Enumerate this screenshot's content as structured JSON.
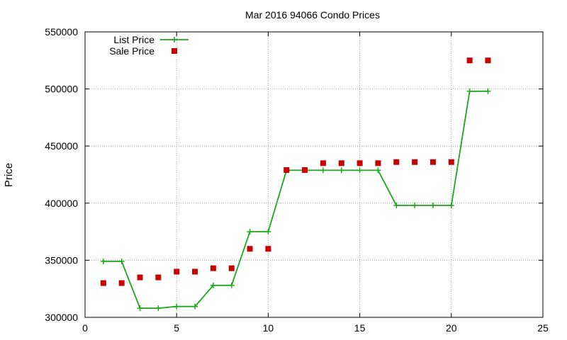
{
  "chart_data": {
    "type": "line",
    "title": "Mar 2016 94066 Condo Prices",
    "xlabel": "",
    "ylabel": "Price",
    "xlim": [
      0,
      25
    ],
    "ylim": [
      300000,
      550000
    ],
    "xticks": [
      0,
      5,
      10,
      15,
      20,
      25
    ],
    "yticks": [
      300000,
      350000,
      400000,
      450000,
      500000,
      550000
    ],
    "grid": true,
    "legend_position": "top-left",
    "series": [
      {
        "name": "List Price",
        "style": "line-points",
        "color": "#1aa81a",
        "x": [
          1,
          2,
          3,
          4,
          5,
          6,
          7,
          8,
          9,
          10,
          11,
          12,
          13,
          14,
          15,
          16,
          17,
          18,
          19,
          20,
          21,
          22
        ],
        "values": [
          349000,
          349000,
          308000,
          308000,
          309500,
          309500,
          328000,
          328000,
          375000,
          375000,
          428800,
          428800,
          428800,
          428800,
          428800,
          428800,
          398000,
          398000,
          398000,
          398000,
          498000,
          498000
        ]
      },
      {
        "name": "Sale Price",
        "style": "points",
        "color": "#c80000",
        "x": [
          1,
          2,
          3,
          4,
          5,
          6,
          7,
          8,
          9,
          10,
          11,
          12,
          13,
          14,
          15,
          16,
          17,
          18,
          19,
          20,
          21,
          22
        ],
        "values": [
          330000,
          330000,
          335000,
          335000,
          340000,
          340000,
          343000,
          343000,
          360000,
          360000,
          429000,
          429000,
          435000,
          435000,
          435000,
          435000,
          436000,
          436000,
          436000,
          436000,
          525000,
          525000
        ]
      }
    ]
  }
}
